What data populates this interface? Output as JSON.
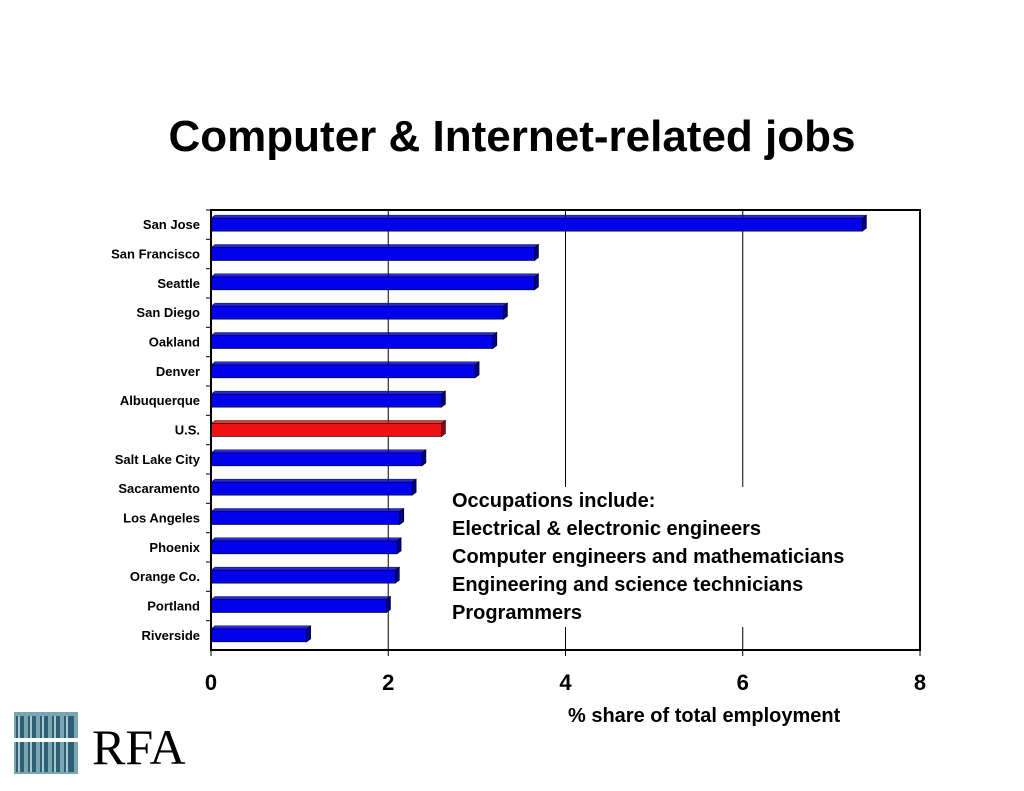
{
  "chart_data": {
    "type": "bar",
    "orientation": "horizontal",
    "title": "Computer & Internet-related jobs",
    "xlabel": "% share of total employment",
    "ylabel": "",
    "xlim": [
      0,
      8
    ],
    "xticks": [
      "0",
      "2",
      "4",
      "6",
      "8"
    ],
    "grid": "vertical",
    "categories": [
      "San Jose",
      "San Francisco",
      "Seattle",
      "San Diego",
      "Oakland",
      "Denver",
      "Albuquerque",
      "U.S.",
      "Salt Lake City",
      "Sacaramento",
      "Los Angeles",
      "Phoenix",
      "Orange Co.",
      "Portland",
      "Riverside"
    ],
    "values": [
      7.35,
      3.65,
      3.65,
      3.3,
      3.18,
      2.98,
      2.6,
      2.6,
      2.38,
      2.27,
      2.13,
      2.1,
      2.08,
      1.98,
      1.08
    ],
    "colors": {
      "default": "#0000ee",
      "highlight": "#ee1111",
      "highlight_category": "U.S."
    }
  },
  "annotation": {
    "heading": "Occupations include:",
    "items": [
      "Electrical & electronic engineers",
      "Computer engineers and mathematicians",
      "Engineering and science technicians",
      "Programmers"
    ]
  },
  "logo": {
    "text": "RFA",
    "icon": "building-columns-icon",
    "color": "#2e5f72"
  }
}
